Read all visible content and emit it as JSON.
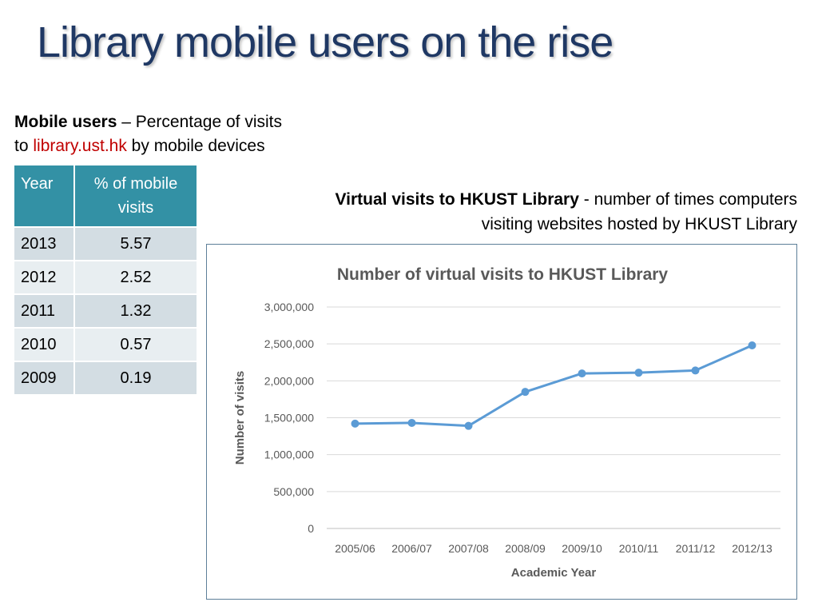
{
  "slide": {
    "title": "Library mobile users on the rise"
  },
  "mobile": {
    "caption_bold": "Mobile users",
    "caption_rest": " – Percentage of visits",
    "caption_line2_prefix": "to ",
    "caption_link": "library.ust.hk",
    "caption_line2_suffix": " by mobile devices",
    "table": {
      "headers": [
        "Year",
        "% of mobile visits"
      ],
      "rows": [
        {
          "year": "2013",
          "pct": "5.57"
        },
        {
          "year": "2012",
          "pct": "2.52"
        },
        {
          "year": "2011",
          "pct": "1.32"
        },
        {
          "year": "2010",
          "pct": "0.57"
        },
        {
          "year": "2009",
          "pct": "0.19"
        }
      ]
    }
  },
  "virtual": {
    "caption_bold": "Virtual visits to HKUST Library",
    "caption_rest": " - number of times computers visiting websites hosted by HKUST Library"
  },
  "colors": {
    "title": "#1f3864",
    "table_header": "#3391a5",
    "link": "#c00000",
    "series_line": "#5b9bd5"
  },
  "chart_data": {
    "type": "line",
    "title": "Number of virtual visits to HKUST Library",
    "xlabel": "Academic Year",
    "ylabel": "Number of visits",
    "categories": [
      "2005/06",
      "2006/07",
      "2007/08",
      "2008/09",
      "2009/10",
      "2010/11",
      "2011/12",
      "2012/13"
    ],
    "series": [
      {
        "values": [
          1420000,
          1430000,
          1390000,
          1850000,
          2100000,
          2110000,
          2140000,
          2480000
        ]
      }
    ],
    "ylim": [
      0,
      3000000
    ],
    "yticks": [
      0,
      500000,
      1000000,
      1500000,
      2000000,
      2500000,
      3000000
    ],
    "ytick_labels": [
      "0",
      "500,000",
      "1,000,000",
      "1,500,000",
      "2,000,000",
      "2,500,000",
      "3,000,000"
    ],
    "grid": true,
    "legend": "none"
  }
}
